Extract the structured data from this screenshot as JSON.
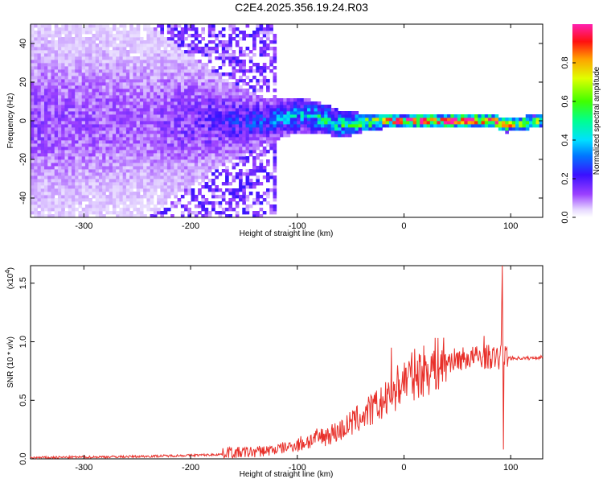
{
  "title": "C2E4.2025.356.19.24.R03",
  "chart_data": [
    {
      "type": "heatmap",
      "xlabel": "Height of straight line (km)",
      "ylabel": "Frequency (Hz)",
      "xlim": [
        -350,
        130
      ],
      "ylim": [
        -50,
        50
      ],
      "xticks": [
        -300,
        -200,
        -100,
        0,
        100
      ],
      "yticks": [
        -40,
        -20,
        0,
        20,
        40
      ],
      "colorbar": {
        "label": "Normalized spectral amplitude",
        "range": [
          0,
          1
        ],
        "ticks": [
          "0.0",
          "0.2",
          "0.4",
          "0.6",
          "0.8"
        ]
      },
      "signal_band": [
        {
          "x": -350,
          "center": 0,
          "halfwidth": 50,
          "amplitude": 0.12
        },
        {
          "x": -240,
          "center": 0,
          "halfwidth": 50,
          "amplitude": 0.1
        },
        {
          "x": -170,
          "center": 0,
          "halfwidth": 22,
          "amplitude": 0.18
        },
        {
          "x": -130,
          "center": 0,
          "halfwidth": 12,
          "amplitude": 0.25
        },
        {
          "x": -100,
          "center": 3,
          "halfwidth": 9,
          "amplitude": 0.35
        },
        {
          "x": -80,
          "center": 2,
          "halfwidth": 8,
          "amplitude": 0.42
        },
        {
          "x": -60,
          "center": -2,
          "halfwidth": 7,
          "amplitude": 0.45
        },
        {
          "x": -40,
          "center": -1,
          "halfwidth": 5,
          "amplitude": 0.55
        },
        {
          "x": -20,
          "center": 0,
          "halfwidth": 4,
          "amplitude": 0.65
        },
        {
          "x": 0,
          "center": 0,
          "halfwidth": 3,
          "amplitude": 0.85
        },
        {
          "x": 40,
          "center": 0,
          "halfwidth": 3,
          "amplitude": 0.95
        },
        {
          "x": 80,
          "center": 0.5,
          "halfwidth": 3,
          "amplitude": 0.85
        },
        {
          "x": 95,
          "center": -2,
          "halfwidth": 4,
          "amplitude": 0.7
        },
        {
          "x": 130,
          "center": 0,
          "halfwidth": 3,
          "amplitude": 0.6
        }
      ]
    },
    {
      "type": "line",
      "xlabel": "Height of straight line (km)",
      "ylabel": "SNR (10 * v/v)",
      "y_multiplier": "(x10",
      "y_multiplier_exp": "4",
      "y_multiplier_close": ")",
      "xlim": [
        -350,
        130
      ],
      "ylim": [
        0,
        1.65
      ],
      "xticks": [
        -300,
        -200,
        -100,
        0,
        100
      ],
      "yticks": [
        "0.0",
        "0.5",
        "1.0",
        "1.5"
      ],
      "series": [
        {
          "color": "#e8302a",
          "x": [
            -350,
            -300,
            -250,
            -200,
            -180,
            -170,
            -165,
            -160,
            -140,
            -120,
            -100,
            -80,
            -60,
            -50,
            -40,
            -30,
            -20,
            -12,
            -10,
            -5,
            0,
            10,
            20,
            30,
            40,
            50,
            60,
            70,
            80,
            85,
            90,
            92,
            93,
            94,
            95,
            100,
            110,
            120,
            130
          ],
          "y": [
            0.01,
            0.015,
            0.02,
            0.03,
            0.035,
            0.04,
            0.06,
            0.05,
            0.06,
            0.08,
            0.12,
            0.18,
            0.24,
            0.3,
            0.36,
            0.42,
            0.48,
            0.52,
            0.58,
            0.62,
            0.68,
            0.72,
            0.76,
            0.8,
            0.83,
            0.85,
            0.86,
            0.87,
            0.87,
            0.86,
            0.85,
            1.3,
            0.6,
            0.9,
            0.88,
            0.86,
            0.86,
            0.86,
            0.87
          ]
        }
      ],
      "spikes": [
        {
          "x": -165,
          "y": 0.1
        },
        {
          "x": -12,
          "y": 0.95
        },
        {
          "x": 75,
          "y": 1.05
        },
        {
          "x": 92,
          "y": 1.65
        },
        {
          "x": 93,
          "y": 0.08
        }
      ]
    }
  ]
}
